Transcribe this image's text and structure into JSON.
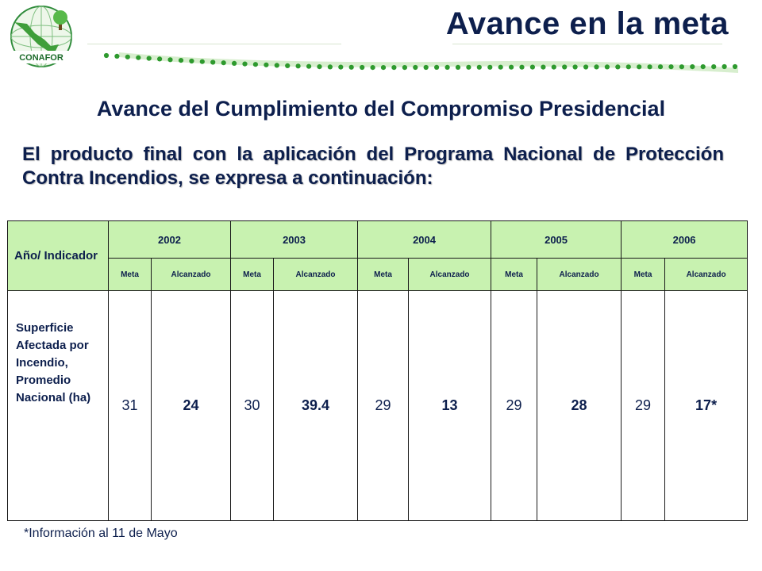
{
  "header": {
    "title": "Avance en la meta",
    "logo_text": "CONAFOR"
  },
  "subtitle": "Avance del Cumplimiento del Compromiso Presidencial",
  "intro": "El producto final con la aplicación del Programa Nacional de Protección Contra Incendios, se expresa a continuación:",
  "colors": {
    "header_fill": "#c8f2b0",
    "accent_green": "#2e9a2e",
    "text_navy": "#0d1f4d"
  },
  "table": {
    "corner_label": "Año/ Indicador",
    "years": [
      "2002",
      "2003",
      "2004",
      "2005",
      "2006"
    ],
    "sub_meta": "Meta",
    "sub_alcanzado": "Alcanzado",
    "indicator_label": "Superficie Afectada por Incendio, Promedio Nacional (ha)",
    "values": [
      {
        "meta": "31",
        "alcanzado": "24"
      },
      {
        "meta": "30",
        "alcanzado": "39.4"
      },
      {
        "meta": "29",
        "alcanzado": "13"
      },
      {
        "meta": "29",
        "alcanzado": "28"
      },
      {
        "meta": "29",
        "alcanzado": "17*"
      }
    ]
  },
  "footnote": "*Información al 11 de Mayo"
}
